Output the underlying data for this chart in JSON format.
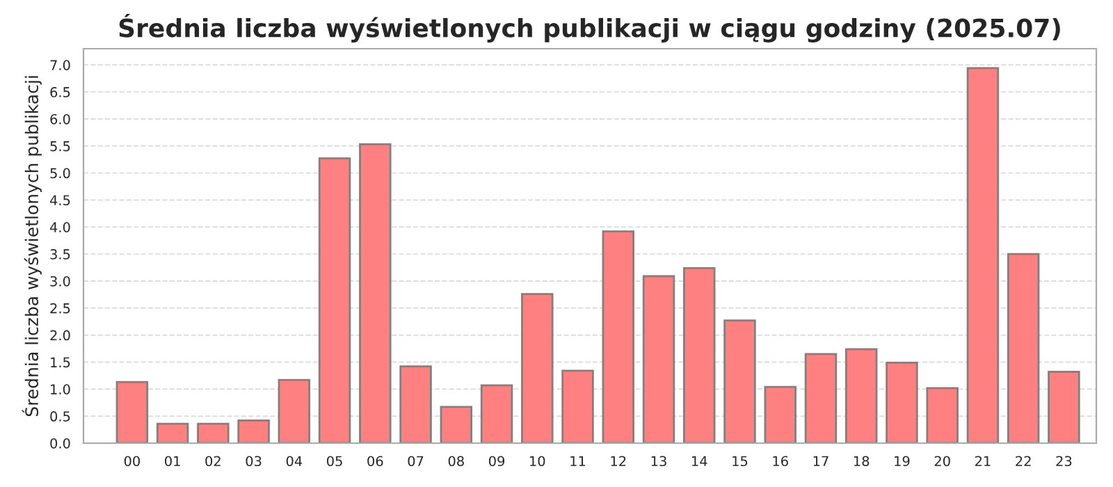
{
  "chart_data": {
    "type": "bar",
    "title": "Średnia liczba wyświetlonych publikacji w ciągu godziny (2025.07)",
    "ylabel": "Średnia liczba wyświetlonych publikacji",
    "categories": [
      "00",
      "01",
      "02",
      "03",
      "04",
      "05",
      "06",
      "07",
      "08",
      "09",
      "10",
      "11",
      "12",
      "13",
      "14",
      "15",
      "16",
      "17",
      "18",
      "19",
      "20",
      "21",
      "22",
      "23"
    ],
    "values": [
      1.13,
      0.36,
      0.36,
      0.42,
      1.17,
      5.27,
      5.53,
      1.42,
      0.67,
      1.07,
      2.76,
      1.34,
      3.92,
      3.09,
      3.24,
      2.27,
      1.04,
      1.65,
      1.74,
      1.49,
      1.02,
      6.94,
      3.5,
      1.32
    ],
    "color": "#ff8080",
    "ylim": [
      0,
      7.3
    ],
    "yticks": [
      {
        "value": 0,
        "label": "0.0"
      },
      {
        "value": 0.5,
        "label": "0.5"
      },
      {
        "value": 1,
        "label": "1.0"
      },
      {
        "value": 1.5,
        "label": "1.5"
      },
      {
        "value": 2,
        "label": "2.0"
      },
      {
        "value": 2.5,
        "label": "2.5"
      },
      {
        "value": 3,
        "label": "3.0"
      },
      {
        "value": 3.5,
        "label": "3.5"
      },
      {
        "value": 4,
        "label": "4.0"
      },
      {
        "value": 4.5,
        "label": "4.5"
      },
      {
        "value": 5,
        "label": "5.0"
      },
      {
        "value": 5.5,
        "label": "5.5"
      },
      {
        "value": 6,
        "label": "6.0"
      },
      {
        "value": 6.5,
        "label": "6.5"
      },
      {
        "value": 7,
        "label": "7.0"
      }
    ],
    "grid": "y"
  }
}
